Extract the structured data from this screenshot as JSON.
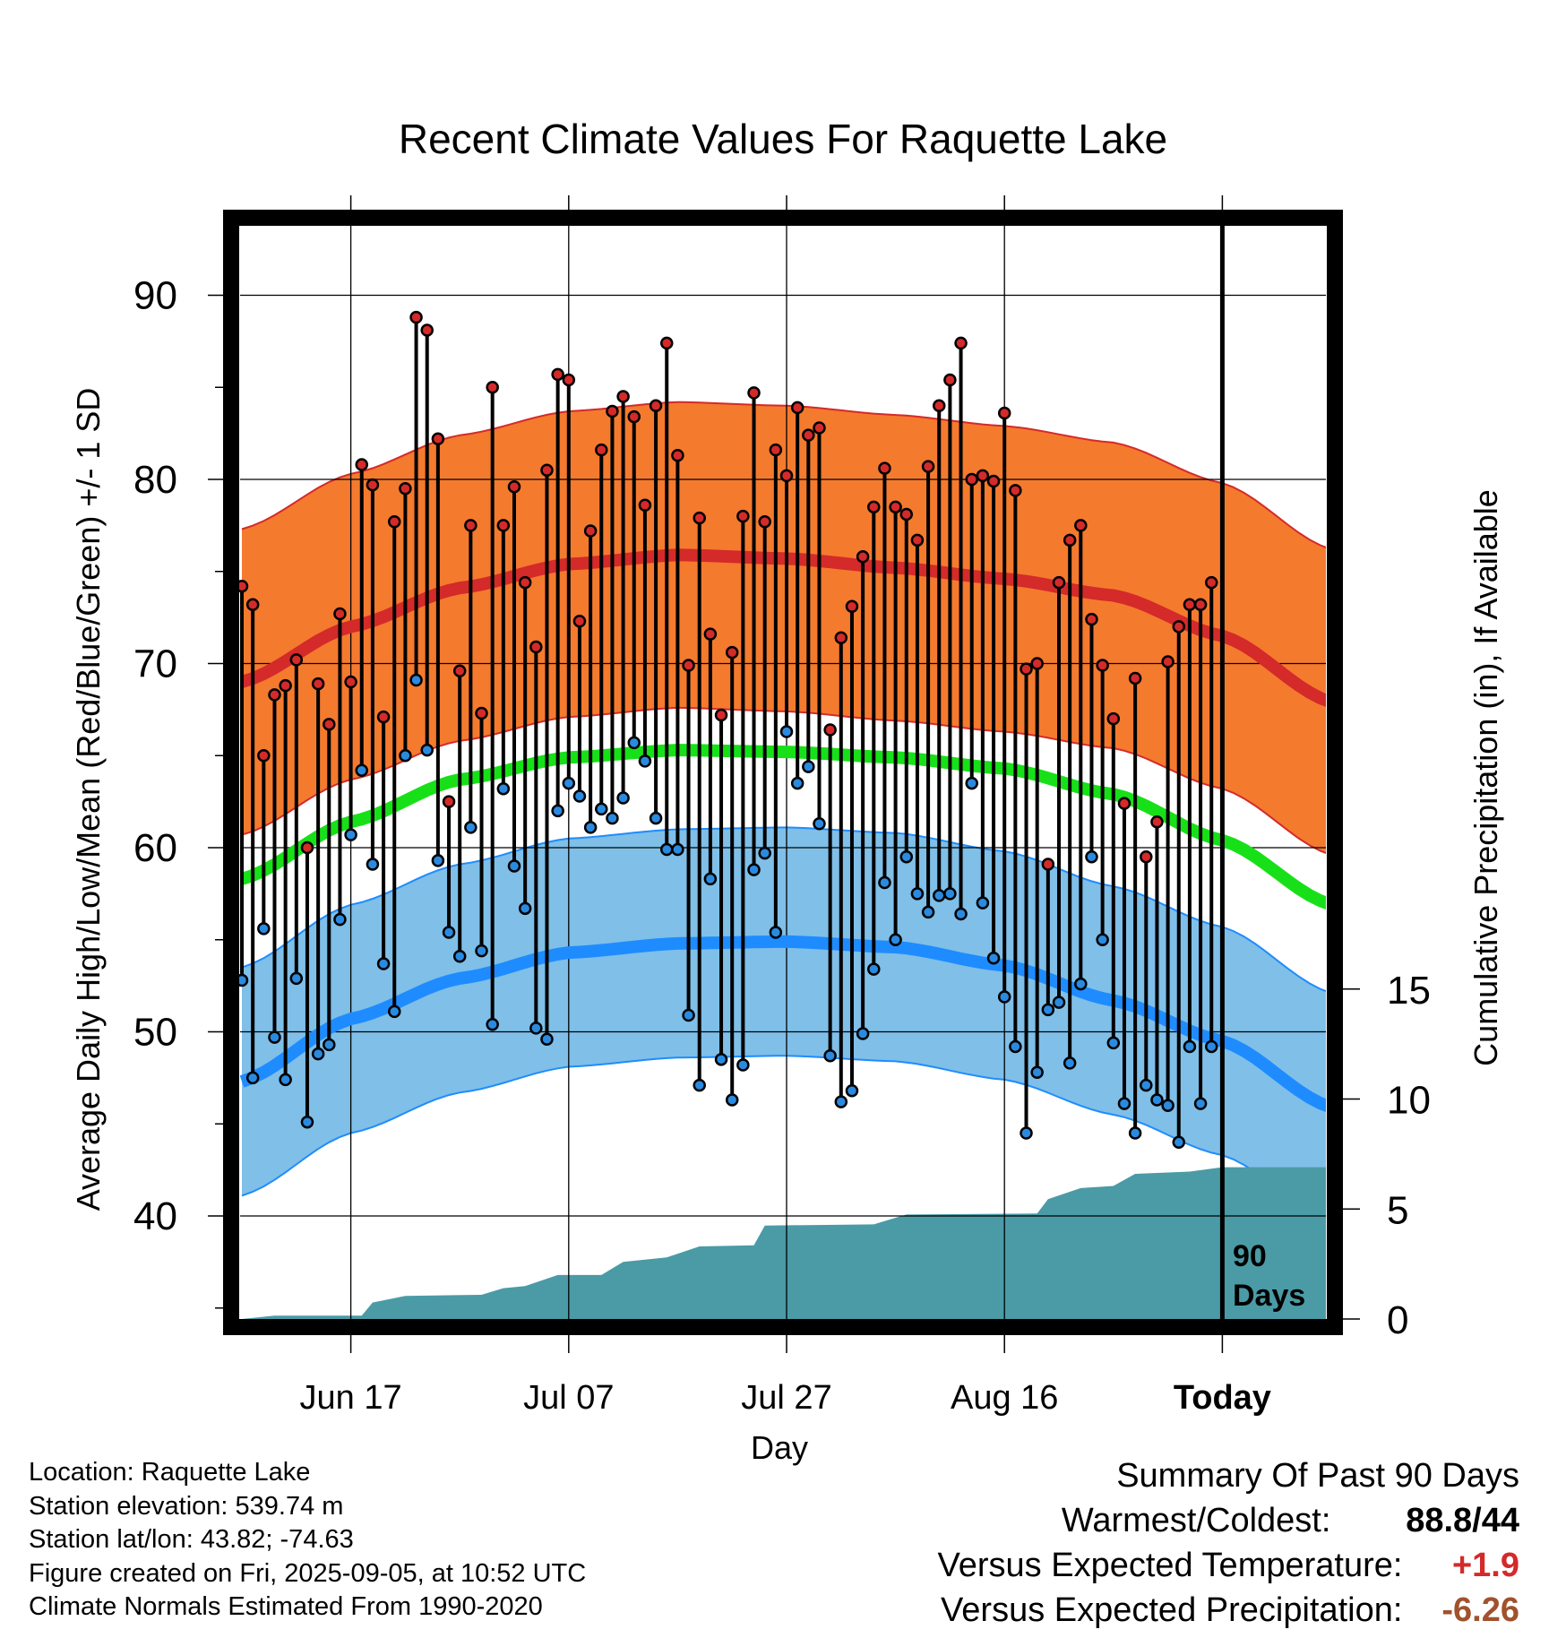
{
  "title": "Recent Climate Values For Raquette Lake",
  "chart_data": {
    "type": "line",
    "title": "Recent Climate Values For Raquette Lake",
    "xlabel": "Day",
    "ylabel": "Average Daily High/Low/Mean (Red/Blue/Green) +/- 1 SD",
    "y2label": "Cumulative Precipitation (in), If Available",
    "x_ticks": [
      "Jun 17",
      "Jul 07",
      "Jul 27",
      "Aug 16",
      "Today"
    ],
    "y_ticks": [
      40,
      50,
      60,
      70,
      80,
      90
    ],
    "y2_ticks": [
      0,
      5,
      10,
      15
    ],
    "ylim": [
      34.8,
      94.2
    ],
    "y2lim": [
      0,
      18
    ],
    "grid": true,
    "days_label": [
      "90",
      "Days"
    ],
    "days_label_text": "90 Days",
    "series_colors": {
      "high_normal": "#d42a2a",
      "high_band": "#f47a2e",
      "mean_normal": "#18e018",
      "low_normal": "#1e8cff",
      "low_band": "#7fbfe8",
      "precip": "#4a9ba6"
    },
    "normals": {
      "days": [
        0,
        10,
        20,
        30,
        40,
        50,
        60,
        70,
        80,
        90,
        100
      ],
      "high": [
        69.0,
        72.0,
        74.1,
        75.4,
        75.9,
        75.7,
        75.2,
        74.6,
        73.7,
        71.5,
        67.9
      ],
      "high_sd": 8.3,
      "mean": [
        58.3,
        61.4,
        63.7,
        64.9,
        65.3,
        65.2,
        64.9,
        64.3,
        62.9,
        60.4,
        56.9
      ],
      "low": [
        47.3,
        50.7,
        52.9,
        54.3,
        54.8,
        54.9,
        54.6,
        53.6,
        51.7,
        49.5,
        45.9
      ],
      "low_sd": 6.2
    },
    "observations": [
      {
        "day": 0,
        "high": 74.2,
        "low": 52.8
      },
      {
        "day": 1,
        "high": 73.2,
        "low": 47.5
      },
      {
        "day": 2,
        "high": 65.0,
        "low": 55.6
      },
      {
        "day": 3,
        "high": 68.3,
        "low": 49.7
      },
      {
        "day": 4,
        "high": 68.8,
        "low": 47.4
      },
      {
        "day": 5,
        "high": 70.2,
        "low": 52.9
      },
      {
        "day": 6,
        "high": 60.0,
        "low": 45.1
      },
      {
        "day": 7,
        "high": 68.9,
        "low": 48.8
      },
      {
        "day": 8,
        "high": 66.7,
        "low": 49.3
      },
      {
        "day": 9,
        "high": 72.7,
        "low": 56.1
      },
      {
        "day": 10,
        "high": 69.0,
        "low": 60.7
      },
      {
        "day": 11,
        "high": 80.8,
        "low": 64.2
      },
      {
        "day": 12,
        "high": 79.7,
        "low": 59.1
      },
      {
        "day": 13,
        "high": 67.1,
        "low": 53.7
      },
      {
        "day": 14,
        "high": 77.7,
        "low": 51.1
      },
      {
        "day": 15,
        "high": 79.5,
        "low": 65.0
      },
      {
        "day": 16,
        "high": 88.8,
        "low": 69.1
      },
      {
        "day": 17,
        "high": 88.1,
        "low": 65.3
      },
      {
        "day": 18,
        "high": 82.2,
        "low": 59.3
      },
      {
        "day": 19,
        "high": 62.5,
        "low": 55.4
      },
      {
        "day": 20,
        "high": 69.6,
        "low": 54.1
      },
      {
        "day": 21,
        "high": 77.5,
        "low": 61.1
      },
      {
        "day": 22,
        "high": 67.3,
        "low": 54.4
      },
      {
        "day": 23,
        "high": 85.0,
        "low": 50.4
      },
      {
        "day": 24,
        "high": 77.5,
        "low": 63.2
      },
      {
        "day": 25,
        "high": 79.6,
        "low": 59.0
      },
      {
        "day": 26,
        "high": 74.4,
        "low": 56.7
      },
      {
        "day": 27,
        "high": 70.9,
        "low": 50.2
      },
      {
        "day": 28,
        "high": 80.5,
        "low": 49.6
      },
      {
        "day": 29,
        "high": 85.7,
        "low": 62.0
      },
      {
        "day": 30,
        "high": 85.4,
        "low": 63.5
      },
      {
        "day": 31,
        "high": 72.3,
        "low": 62.8
      },
      {
        "day": 32,
        "high": 77.2,
        "low": 61.1
      },
      {
        "day": 33,
        "high": 81.6,
        "low": 62.1
      },
      {
        "day": 34,
        "high": 83.7,
        "low": 61.6
      },
      {
        "day": 35,
        "high": 84.5,
        "low": 62.7
      },
      {
        "day": 36,
        "high": 83.4,
        "low": 65.7
      },
      {
        "day": 37,
        "high": 78.6,
        "low": 64.7
      },
      {
        "day": 38,
        "high": 84.0,
        "low": 61.6
      },
      {
        "day": 39,
        "high": 87.4,
        "low": 59.9
      },
      {
        "day": 40,
        "high": 81.3,
        "low": 59.9
      },
      {
        "day": 41,
        "high": 69.9,
        "low": 50.9
      },
      {
        "day": 42,
        "high": 77.9,
        "low": 47.1
      },
      {
        "day": 43,
        "high": 71.6,
        "low": 58.3
      },
      {
        "day": 44,
        "high": 67.2,
        "low": 48.5
      },
      {
        "day": 45,
        "high": 70.6,
        "low": 46.3
      },
      {
        "day": 46,
        "high": 78.0,
        "low": 48.2
      },
      {
        "day": 47,
        "high": 84.7,
        "low": 58.8
      },
      {
        "day": 48,
        "high": 77.7,
        "low": 59.7
      },
      {
        "day": 49,
        "high": 81.6,
        "low": 55.4
      },
      {
        "day": 50,
        "high": 80.2,
        "low": 66.3
      },
      {
        "day": 51,
        "high": 83.9,
        "low": 63.5
      },
      {
        "day": 52,
        "high": 82.4,
        "low": 64.4
      },
      {
        "day": 53,
        "high": 82.8,
        "low": 61.3
      },
      {
        "day": 54,
        "high": 66.4,
        "low": 48.7
      },
      {
        "day": 55,
        "high": 71.4,
        "low": 46.2
      },
      {
        "day": 56,
        "high": 73.1,
        "low": 46.8
      },
      {
        "day": 57,
        "high": 75.8,
        "low": 49.9
      },
      {
        "day": 58,
        "high": 78.5,
        "low": 53.4
      },
      {
        "day": 59,
        "high": 80.6,
        "low": 58.1
      },
      {
        "day": 60,
        "high": 78.5,
        "low": 55.0
      },
      {
        "day": 61,
        "high": 78.1,
        "low": 59.5
      },
      {
        "day": 62,
        "high": 76.7,
        "low": 57.5
      },
      {
        "day": 63,
        "high": 80.7,
        "low": 56.5
      },
      {
        "day": 64,
        "high": 84.0,
        "low": 57.4
      },
      {
        "day": 65,
        "high": 85.4,
        "low": 57.5
      },
      {
        "day": 66,
        "high": 87.4,
        "low": 56.4
      },
      {
        "day": 67,
        "high": 80.0,
        "low": 63.5
      },
      {
        "day": 68,
        "high": 80.2,
        "low": 57.0
      },
      {
        "day": 69,
        "high": 79.9,
        "low": 54.0
      },
      {
        "day": 70,
        "high": 83.6,
        "low": 51.9
      },
      {
        "day": 71,
        "high": 79.4,
        "low": 49.2
      },
      {
        "day": 72,
        "high": 69.7,
        "low": 44.5
      },
      {
        "day": 73,
        "high": 70.0,
        "low": 47.8
      },
      {
        "day": 74,
        "high": 59.1,
        "low": 51.2
      },
      {
        "day": 75,
        "high": 74.4,
        "low": 51.6
      },
      {
        "day": 76,
        "high": 76.7,
        "low": 48.3
      },
      {
        "day": 77,
        "high": 77.5,
        "low": 52.6
      },
      {
        "day": 78,
        "high": 72.4,
        "low": 59.5
      },
      {
        "day": 79,
        "high": 69.9,
        "low": 55.0
      },
      {
        "day": 80,
        "high": 67.0,
        "low": 49.4
      },
      {
        "day": 81,
        "high": 62.4,
        "low": 46.1
      },
      {
        "day": 82,
        "high": 69.2,
        "low": 44.5
      },
      {
        "day": 83,
        "high": 59.5,
        "low": 47.1
      },
      {
        "day": 84,
        "high": 61.4,
        "low": 46.3
      },
      {
        "day": 85,
        "high": 70.1,
        "low": 46.0
      },
      {
        "day": 86,
        "high": 72.0,
        "low": 44.0
      },
      {
        "day": 87,
        "high": 73.2,
        "low": 49.2
      },
      {
        "day": 88,
        "high": 73.2,
        "low": 46.1
      },
      {
        "day": 89,
        "high": 74.4,
        "low": 49.2
      }
    ],
    "precip_cumulative": [
      {
        "day": 0,
        "value": 0
      },
      {
        "day": 3,
        "value": 0.15
      },
      {
        "day": 11,
        "value": 0.15
      },
      {
        "day": 12,
        "value": 0.75
      },
      {
        "day": 15,
        "value": 1.05
      },
      {
        "day": 22,
        "value": 1.1
      },
      {
        "day": 24,
        "value": 1.4
      },
      {
        "day": 26,
        "value": 1.5
      },
      {
        "day": 29,
        "value": 2.0
      },
      {
        "day": 33,
        "value": 2.0
      },
      {
        "day": 35,
        "value": 2.6
      },
      {
        "day": 39,
        "value": 2.8
      },
      {
        "day": 42,
        "value": 3.3
      },
      {
        "day": 47,
        "value": 3.35
      },
      {
        "day": 48,
        "value": 4.25
      },
      {
        "day": 58,
        "value": 4.3
      },
      {
        "day": 61,
        "value": 4.75
      },
      {
        "day": 73,
        "value": 4.8
      },
      {
        "day": 74,
        "value": 5.45
      },
      {
        "day": 77,
        "value": 5.95
      },
      {
        "day": 80,
        "value": 6.05
      },
      {
        "day": 82,
        "value": 6.6
      },
      {
        "day": 87,
        "value": 6.7
      },
      {
        "day": 90,
        "value": 6.9
      },
      {
        "day": 100,
        "value": 6.9
      }
    ]
  },
  "info": {
    "location": "Location: Raquette Lake",
    "elevation": "Station elevation: 539.74 m",
    "latlon": "Station lat/lon: 43.82; -74.63",
    "created": "Figure created on Fri, 2025-09-05, at 10:52 UTC",
    "normals": "Climate Normals Estimated From 1990-2020"
  },
  "summary": {
    "heading": "Summary Of Past 90 Days",
    "warm_cold_label": "Warmest/Coldest:",
    "warmest": "88.8",
    "sep": "/",
    "coldest": "44",
    "temp_label": "Versus Expected Temperature:",
    "temp_value": "+1.9",
    "temp_color": "#d42a2a",
    "precip_label": "Versus Expected Precipitation:",
    "precip_value": "-6.26",
    "precip_color": "#a0522d"
  }
}
